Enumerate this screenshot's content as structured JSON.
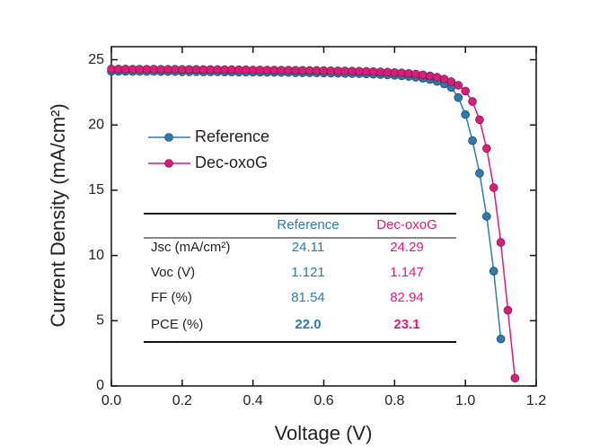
{
  "chart_data": {
    "type": "line",
    "xlabel": "Voltage (V)",
    "ylabel": "Current Density (mA/cm²)",
    "xlim": [
      0,
      1.2
    ],
    "ylim": [
      0,
      26
    ],
    "xticks": [
      {
        "value": 0,
        "label": "0.0"
      },
      0.2,
      0.4,
      0.6,
      0.8,
      {
        "value": 1,
        "label": "1.0"
      },
      1.2
    ],
    "yticks": [
      0,
      5,
      10,
      15,
      20,
      25
    ],
    "legend": "upper left",
    "series": [
      {
        "name": "Reference",
        "color": "#2b7bb0",
        "x": [
          0,
          0.02,
          0.04,
          0.06,
          0.08,
          0.1,
          0.12,
          0.14,
          0.16,
          0.18,
          0.2,
          0.22,
          0.24,
          0.26,
          0.28,
          0.3,
          0.32,
          0.34,
          0.36,
          0.38,
          0.4,
          0.42,
          0.44,
          0.46,
          0.48,
          0.5,
          0.52,
          0.54,
          0.56,
          0.58,
          0.6,
          0.62,
          0.64,
          0.66,
          0.68,
          0.7,
          0.72,
          0.74,
          0.76,
          0.78,
          0.8,
          0.82,
          0.84,
          0.86,
          0.88,
          0.9,
          0.92,
          0.94,
          0.96,
          0.98,
          1,
          1.02,
          1.04,
          1.06,
          1.08,
          1.1
        ],
        "values": [
          24.11,
          24.11,
          24.11,
          24.1,
          24.1,
          24.1,
          24.1,
          24.09,
          24.09,
          24.09,
          24.08,
          24.08,
          24.08,
          24.07,
          24.07,
          24.07,
          24.06,
          24.06,
          24.05,
          24.05,
          24.04,
          24.04,
          24.03,
          24.03,
          24.02,
          24.02,
          24.01,
          24.0,
          24.0,
          23.99,
          23.98,
          23.97,
          23.96,
          23.95,
          23.94,
          23.93,
          23.91,
          23.89,
          23.87,
          23.84,
          23.81,
          23.77,
          23.72,
          23.66,
          23.58,
          23.48,
          23.34,
          23.15,
          22.88,
          22.1,
          20.8,
          18.8,
          16.3,
          13.0,
          8.8,
          3.6
        ]
      },
      {
        "name": "Dec-oxoG",
        "color": "#e0197d",
        "x": [
          0,
          0.02,
          0.04,
          0.06,
          0.08,
          0.1,
          0.12,
          0.14,
          0.16,
          0.18,
          0.2,
          0.22,
          0.24,
          0.26,
          0.28,
          0.3,
          0.32,
          0.34,
          0.36,
          0.38,
          0.4,
          0.42,
          0.44,
          0.46,
          0.48,
          0.5,
          0.52,
          0.54,
          0.56,
          0.58,
          0.6,
          0.62,
          0.64,
          0.66,
          0.68,
          0.7,
          0.72,
          0.74,
          0.76,
          0.78,
          0.8,
          0.82,
          0.84,
          0.86,
          0.88,
          0.9,
          0.92,
          0.94,
          0.96,
          0.98,
          1,
          1.02,
          1.04,
          1.06,
          1.08,
          1.1,
          1.12,
          1.14
        ],
        "values": [
          24.29,
          24.29,
          24.29,
          24.28,
          24.28,
          24.28,
          24.28,
          24.27,
          24.27,
          24.27,
          24.26,
          24.26,
          24.26,
          24.25,
          24.25,
          24.25,
          24.24,
          24.24,
          24.23,
          24.23,
          24.22,
          24.22,
          24.21,
          24.21,
          24.2,
          24.2,
          24.19,
          24.19,
          24.18,
          24.18,
          24.17,
          24.16,
          24.15,
          24.14,
          24.13,
          24.12,
          24.11,
          24.09,
          24.07,
          24.05,
          24.02,
          23.99,
          23.95,
          23.9,
          23.84,
          23.76,
          23.66,
          23.52,
          23.32,
          23.04,
          22.6,
          21.8,
          20.4,
          18.2,
          15.2,
          11.0,
          5.8,
          0.6
        ]
      }
    ],
    "table": {
      "header": [
        "Reference",
        "Dec-oxoG"
      ],
      "rows": [
        [
          "Jsc (mA/cm²)",
          "24.11",
          "24.29"
        ],
        [
          "Voc (V)",
          "1.121",
          "1.147"
        ],
        [
          "FF (%)",
          "81.54",
          "82.94"
        ],
        [
          "PCE (%)",
          "22.0",
          "23.1"
        ]
      ]
    }
  }
}
